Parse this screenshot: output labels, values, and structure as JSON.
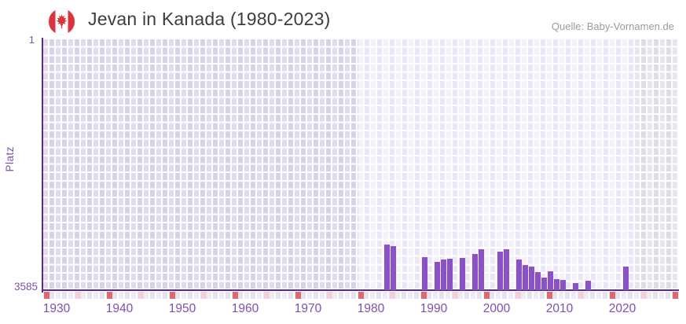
{
  "header": {
    "title": "Jevan in Kanada (1980-2023)",
    "source": "Quelle: Baby-Vornamen.de",
    "flag_icon": "canada-flag-round"
  },
  "axes": {
    "y_label": "Platz",
    "y_top_tick": "1",
    "y_bottom_tick": "3585",
    "x_tick_years": [
      1930,
      1940,
      1950,
      1960,
      1970,
      1980,
      1990,
      2000,
      2010,
      2020
    ]
  },
  "chart_data": {
    "type": "bar",
    "title": "Jevan in Kanada (1980-2023)",
    "xlabel": "",
    "ylabel": "Platz",
    "y_axis_inverted": true,
    "ylim": [
      1,
      3585
    ],
    "x_axis_year_range": [
      1929,
      2028
    ],
    "queried_data_range": [
      1980,
      2023
    ],
    "grid": "checkered background, white gridlines",
    "legend": "none",
    "bars": [
      {
        "year": 1983,
        "rank": 2930
      },
      {
        "year": 1984,
        "rank": 2960
      },
      {
        "year": 1989,
        "rank": 3110
      },
      {
        "year": 1991,
        "rank": 3175
      },
      {
        "year": 1992,
        "rank": 3145
      },
      {
        "year": 1993,
        "rank": 3130
      },
      {
        "year": 1995,
        "rank": 3120
      },
      {
        "year": 1997,
        "rank": 3065
      },
      {
        "year": 1998,
        "rank": 3005
      },
      {
        "year": 2001,
        "rank": 3040
      },
      {
        "year": 2002,
        "rank": 3005
      },
      {
        "year": 2004,
        "rank": 3145
      },
      {
        "year": 2005,
        "rank": 3220
      },
      {
        "year": 2006,
        "rank": 3250
      },
      {
        "year": 2007,
        "rank": 3325
      },
      {
        "year": 2008,
        "rank": 3410
      },
      {
        "year": 2009,
        "rank": 3320
      },
      {
        "year": 2010,
        "rank": 3425
      },
      {
        "year": 2011,
        "rank": 3440
      },
      {
        "year": 2013,
        "rank": 3485
      },
      {
        "year": 2015,
        "rank": 3455
      },
      {
        "year": 2021,
        "rank": 3250
      }
    ],
    "baseline_markers": {
      "red_years": [
        1929,
        1939,
        1949,
        1959,
        1969,
        1979,
        1989,
        1999,
        2009,
        2019,
        2029
      ],
      "pink_years": [
        1934,
        1944,
        1954,
        1964,
        1974,
        1984,
        1994,
        2004,
        2014,
        2024
      ]
    },
    "background_zones": {
      "pre_data_years": [
        1929,
        1979
      ],
      "data_years": [
        1979,
        2023
      ],
      "post_data_years": [
        2023,
        2028
      ]
    }
  },
  "colors": {
    "bar": "#8b52c8",
    "axis_line": "#55307f",
    "tick_text": "#7b52ae",
    "title_text": "#3d3d3d",
    "source_text": "#9a9a9a",
    "red_marker": "#e0686f",
    "pink_marker": "#f3cedb",
    "flag_red": "#d8353c"
  }
}
